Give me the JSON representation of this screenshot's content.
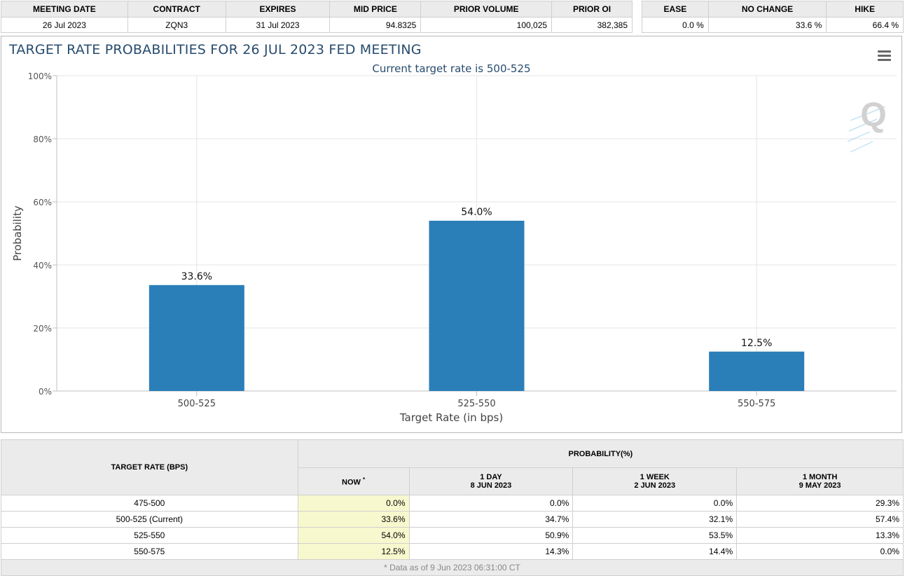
{
  "meeting_info": {
    "headers": [
      "MEETING DATE",
      "CONTRACT",
      "EXPIRES",
      "MID PRICE",
      "PRIOR VOLUME",
      "PRIOR OI"
    ],
    "values": [
      "26 Jul 2023",
      "ZQN3",
      "31 Jul 2023",
      "94.8325",
      "100,025",
      "382,385"
    ]
  },
  "outcome_info": {
    "headers": [
      "EASE",
      "NO CHANGE",
      "HIKE"
    ],
    "values": [
      "0.0 %",
      "33.6 %",
      "66.4 %"
    ]
  },
  "chart_data": {
    "type": "bar",
    "title": "TARGET RATE PROBABILITIES FOR 26 JUL 2023 FED MEETING",
    "subtitle": "Current target rate is 500-525",
    "categories": [
      "500-525",
      "525-550",
      "550-575"
    ],
    "values": [
      33.6,
      54.0,
      12.5
    ],
    "data_labels": [
      "33.6%",
      "54.0%",
      "12.5%"
    ],
    "xlabel": "Target Rate (in bps)",
    "ylabel": "Probability",
    "ylim": [
      0,
      100
    ],
    "yticks": [
      "0%",
      "20%",
      "40%",
      "60%",
      "80%",
      "100%"
    ],
    "ytick_values": [
      0,
      20,
      40,
      60,
      80,
      100
    ],
    "bar_color": "#2b7fb8",
    "grid": true,
    "watermark": "Q"
  },
  "prob_table": {
    "rate_header": "TARGET RATE (BPS)",
    "prob_header": "PROBABILITY(%)",
    "now_label": "NOW",
    "now_mark": "*",
    "columns": [
      {
        "line1": "1 DAY",
        "line2": "8 JUN 2023"
      },
      {
        "line1": "1 WEEK",
        "line2": "2 JUN 2023"
      },
      {
        "line1": "1 MONTH",
        "line2": "9 MAY 2023"
      }
    ],
    "rows": [
      {
        "rate": "475-500",
        "now": "0.0%",
        "day": "0.0%",
        "week": "0.0%",
        "month": "29.3%"
      },
      {
        "rate": "500-525 (Current)",
        "now": "33.6%",
        "day": "34.7%",
        "week": "32.1%",
        "month": "57.4%"
      },
      {
        "rate": "525-550",
        "now": "54.0%",
        "day": "50.9%",
        "week": "53.5%",
        "month": "13.3%"
      },
      {
        "rate": "550-575",
        "now": "12.5%",
        "day": "14.3%",
        "week": "14.4%",
        "month": "0.0%"
      }
    ],
    "footnote": "* Data as of 9 Jun 2023 06:31:00 CT"
  }
}
